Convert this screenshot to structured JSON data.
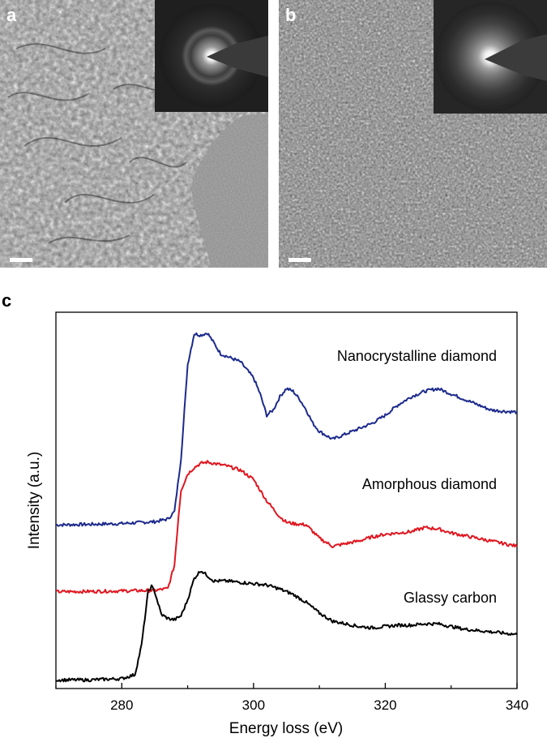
{
  "panels": {
    "a": {
      "letter": "a"
    },
    "b": {
      "letter": "b"
    },
    "c": {
      "letter": "c"
    }
  },
  "chart_data": {
    "type": "line",
    "xlabel": "Energy loss (eV)",
    "ylabel": "Intensity (a.u.)",
    "xlim": [
      270,
      340
    ],
    "xticks": [
      280,
      300,
      320,
      340
    ],
    "yticks_shown": false,
    "grid": false,
    "series": [
      {
        "name": "Nanocrystalline diamond",
        "color": "#1c2a8c",
        "points": [
          [
            270,
            0.25
          ],
          [
            275,
            0.252
          ],
          [
            280,
            0.255
          ],
          [
            285,
            0.262
          ],
          [
            287,
            0.272
          ],
          [
            288,
            0.3
          ],
          [
            289,
            0.5
          ],
          [
            290,
            0.85
          ],
          [
            291,
            0.965
          ],
          [
            292,
            0.96
          ],
          [
            293,
            0.968
          ],
          [
            294,
            0.93
          ],
          [
            295,
            0.89
          ],
          [
            297,
            0.87
          ],
          [
            298,
            0.86
          ],
          [
            300,
            0.8
          ],
          [
            301,
            0.74
          ],
          [
            302,
            0.66
          ],
          [
            303,
            0.68
          ],
          [
            304,
            0.73
          ],
          [
            305,
            0.76
          ],
          [
            306,
            0.75
          ],
          [
            307,
            0.72
          ],
          [
            308,
            0.68
          ],
          [
            309,
            0.63
          ],
          [
            310,
            0.6
          ],
          [
            312,
            0.57
          ],
          [
            314,
            0.59
          ],
          [
            316,
            0.61
          ],
          [
            318,
            0.63
          ],
          [
            320,
            0.66
          ],
          [
            322,
            0.7
          ],
          [
            324,
            0.73
          ],
          [
            326,
            0.75
          ],
          [
            328,
            0.76
          ],
          [
            330,
            0.74
          ],
          [
            332,
            0.72
          ],
          [
            334,
            0.7
          ],
          [
            336,
            0.68
          ],
          [
            338,
            0.675
          ],
          [
            340,
            0.672
          ]
        ]
      },
      {
        "name": "Amorphous diamond",
        "color": "#e0161f",
        "points": [
          [
            270,
            0.0
          ],
          [
            275,
            0.001
          ],
          [
            280,
            0.003
          ],
          [
            285,
            0.005
          ],
          [
            287,
            0.012
          ],
          [
            288,
            0.1
          ],
          [
            288.6,
            0.28
          ],
          [
            289,
            0.38
          ],
          [
            290,
            0.44
          ],
          [
            291,
            0.465
          ],
          [
            292,
            0.48
          ],
          [
            293,
            0.485
          ],
          [
            294,
            0.48
          ],
          [
            296,
            0.47
          ],
          [
            298,
            0.455
          ],
          [
            300,
            0.42
          ],
          [
            301,
            0.38
          ],
          [
            302,
            0.34
          ],
          [
            303,
            0.31
          ],
          [
            304,
            0.28
          ],
          [
            305,
            0.26
          ],
          [
            306,
            0.255
          ],
          [
            308,
            0.25
          ],
          [
            310,
            0.2
          ],
          [
            312,
            0.17
          ],
          [
            314,
            0.18
          ],
          [
            316,
            0.19
          ],
          [
            318,
            0.205
          ],
          [
            320,
            0.215
          ],
          [
            322,
            0.22
          ],
          [
            324,
            0.225
          ],
          [
            326,
            0.24
          ],
          [
            328,
            0.235
          ],
          [
            330,
            0.22
          ],
          [
            332,
            0.21
          ],
          [
            334,
            0.2
          ],
          [
            336,
            0.19
          ],
          [
            338,
            0.18
          ],
          [
            340,
            0.17
          ]
        ]
      },
      {
        "name": "Glassy carbon",
        "color": "#000000",
        "points": [
          [
            270,
            -0.33
          ],
          [
            275,
            -0.33
          ],
          [
            280,
            -0.325
          ],
          [
            282,
            -0.31
          ],
          [
            283,
            -0.2
          ],
          [
            284,
            0.0
          ],
          [
            284.5,
            0.02
          ],
          [
            285,
            0.0
          ],
          [
            286,
            -0.085
          ],
          [
            287,
            -0.1
          ],
          [
            288,
            -0.105
          ],
          [
            289,
            -0.09
          ],
          [
            290,
            -0.03
          ],
          [
            291,
            0.05
          ],
          [
            292,
            0.08
          ],
          [
            293,
            0.06
          ],
          [
            294,
            0.04
          ],
          [
            296,
            0.04
          ],
          [
            298,
            0.035
          ],
          [
            300,
            0.03
          ],
          [
            302,
            0.025
          ],
          [
            304,
            0.01
          ],
          [
            306,
            -0.01
          ],
          [
            308,
            -0.04
          ],
          [
            310,
            -0.08
          ],
          [
            312,
            -0.11
          ],
          [
            314,
            -0.12
          ],
          [
            316,
            -0.13
          ],
          [
            318,
            -0.135
          ],
          [
            320,
            -0.13
          ],
          [
            322,
            -0.125
          ],
          [
            324,
            -0.125
          ],
          [
            326,
            -0.12
          ],
          [
            328,
            -0.12
          ],
          [
            330,
            -0.13
          ],
          [
            332,
            -0.14
          ],
          [
            334,
            -0.145
          ],
          [
            336,
            -0.15
          ],
          [
            338,
            -0.155
          ],
          [
            340,
            -0.16
          ]
        ]
      }
    ]
  }
}
